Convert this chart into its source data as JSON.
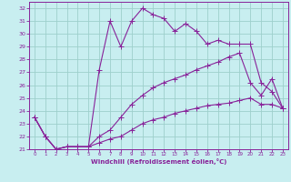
{
  "xlabel": "Windchill (Refroidissement éolien,°C)",
  "bg_color": "#c8eef0",
  "grid_color": "#9ecfcc",
  "line_color": "#882299",
  "xlim": [
    -0.5,
    23.5
  ],
  "ylim": [
    21,
    32.5
  ],
  "yticks": [
    21,
    22,
    23,
    24,
    25,
    26,
    27,
    28,
    29,
    30,
    31,
    32
  ],
  "xticks": [
    0,
    1,
    2,
    3,
    4,
    5,
    6,
    7,
    8,
    9,
    10,
    11,
    12,
    13,
    14,
    15,
    16,
    17,
    18,
    19,
    20,
    21,
    22,
    23
  ],
  "curve1_x": [
    0,
    1,
    2,
    3,
    4,
    5,
    6,
    7,
    8,
    9,
    10,
    11,
    12,
    13,
    14,
    15,
    16,
    17,
    18,
    19,
    20,
    21,
    22,
    23
  ],
  "curve1_y": [
    23.5,
    22.0,
    21.0,
    21.2,
    21.2,
    21.2,
    27.2,
    31.0,
    29.0,
    31.0,
    32.0,
    31.5,
    31.2,
    30.2,
    30.8,
    30.2,
    29.2,
    29.5,
    29.2,
    29.2,
    29.2,
    26.2,
    25.5,
    24.2
  ],
  "curve2_x": [
    0,
    1,
    2,
    3,
    4,
    5,
    6,
    7,
    8,
    9,
    10,
    11,
    12,
    13,
    14,
    15,
    16,
    17,
    18,
    19,
    20,
    21,
    22,
    23
  ],
  "curve2_y": [
    23.5,
    22.0,
    21.0,
    21.2,
    21.2,
    21.2,
    22.0,
    22.5,
    23.5,
    24.5,
    25.2,
    25.8,
    26.2,
    26.5,
    26.8,
    27.2,
    27.5,
    27.8,
    28.2,
    28.5,
    26.2,
    25.2,
    26.5,
    24.2
  ],
  "curve3_x": [
    0,
    1,
    2,
    3,
    4,
    5,
    6,
    7,
    8,
    9,
    10,
    11,
    12,
    13,
    14,
    15,
    16,
    17,
    18,
    19,
    20,
    21,
    22,
    23
  ],
  "curve3_y": [
    23.5,
    22.0,
    21.0,
    21.2,
    21.2,
    21.2,
    21.5,
    21.8,
    22.0,
    22.5,
    23.0,
    23.3,
    23.5,
    23.8,
    24.0,
    24.2,
    24.4,
    24.5,
    24.6,
    24.8,
    25.0,
    24.5,
    24.5,
    24.2
  ]
}
